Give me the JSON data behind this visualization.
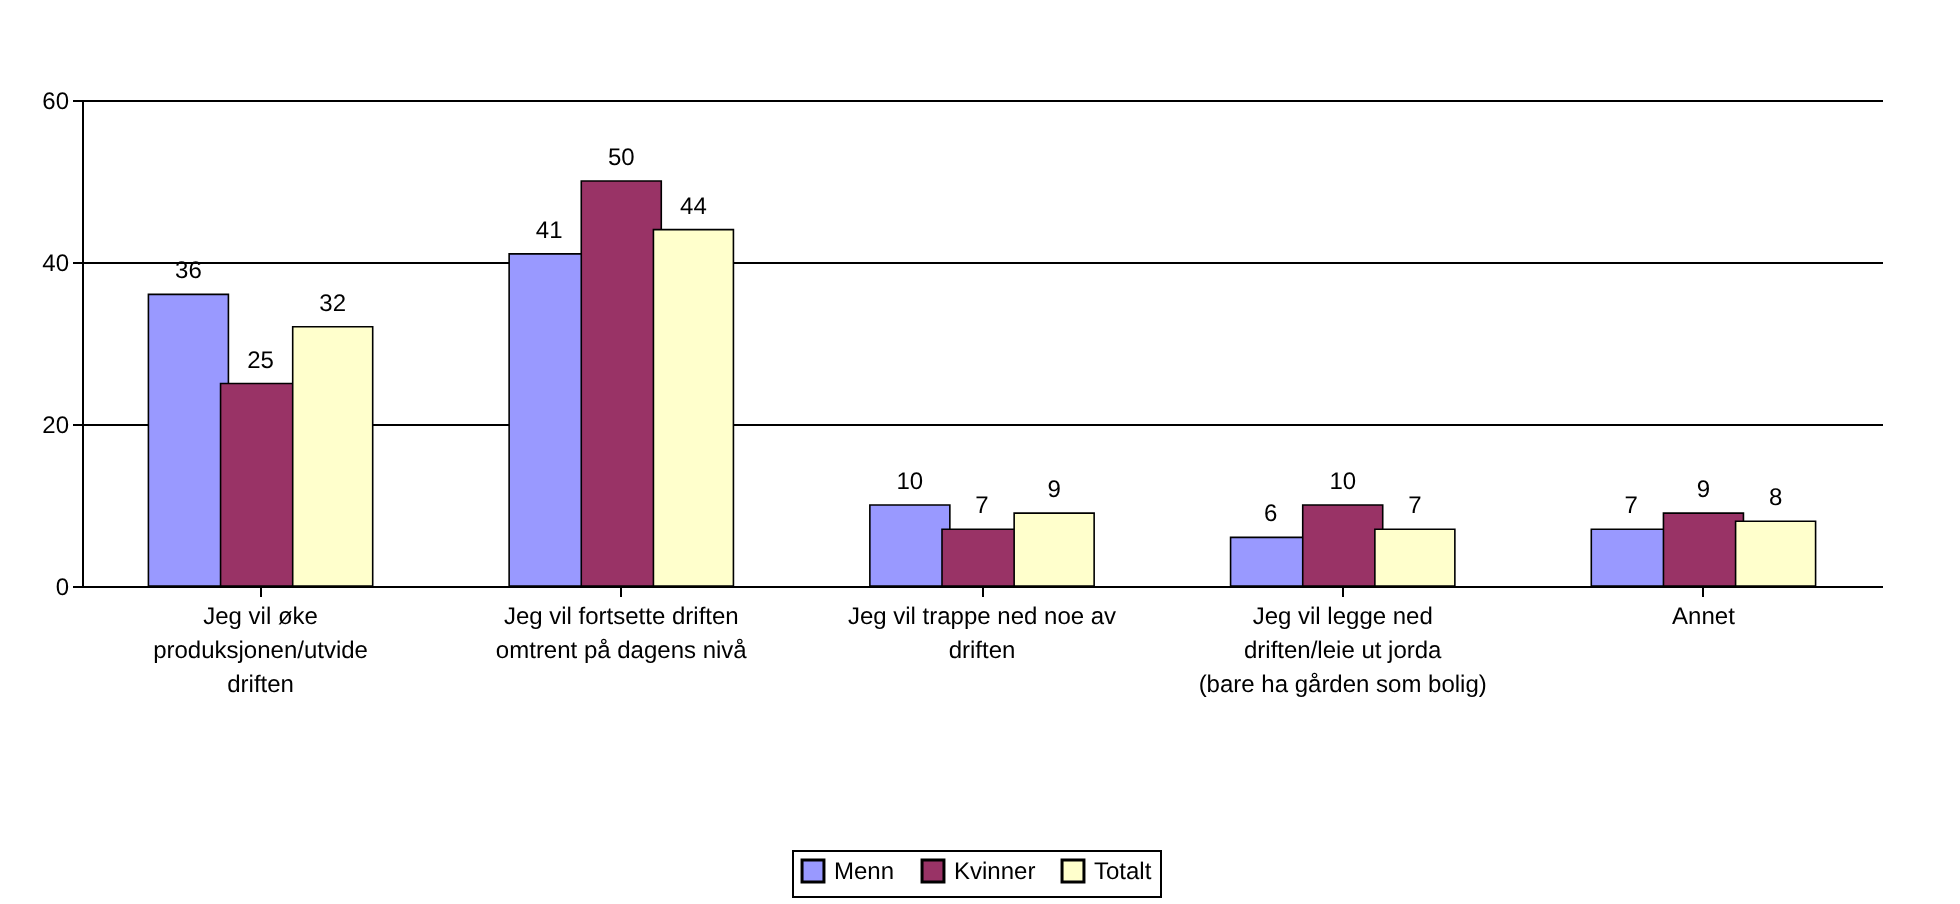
{
  "chart_data": {
    "type": "bar",
    "categories": [
      "Jeg vil øke produksjonen/utvide driften",
      "Jeg vil fortsette driften omtrent på dagens nivå",
      "Jeg vil trappe ned noe av driften",
      "Jeg vil legge ned driften/leie ut jorda (bare ha gården som bolig)",
      "Annet"
    ],
    "series": [
      {
        "name": "Menn",
        "color": "#9999ff",
        "values": [
          36,
          41,
          10,
          6,
          7
        ]
      },
      {
        "name": "Kvinner",
        "color": "#993366",
        "values": [
          25,
          50,
          7,
          10,
          9
        ]
      },
      {
        "name": "Totalt",
        "color": "#ffffcc",
        "values": [
          32,
          44,
          9,
          7,
          8
        ]
      }
    ],
    "ylim": [
      0,
      60
    ],
    "yticks": [
      0,
      20,
      40,
      60
    ],
    "grid": "y",
    "legend": "bottom",
    "data_labels": true
  }
}
